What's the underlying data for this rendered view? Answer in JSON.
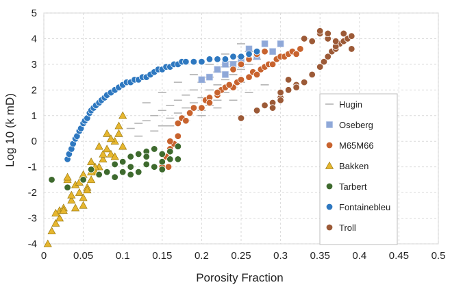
{
  "chart_data": {
    "type": "scatter",
    "title": "",
    "xlabel": "Porosity Fraction",
    "ylabel": "Log 10 (k mD)",
    "xlim": [
      0,
      0.5
    ],
    "ylim": [
      -4,
      5
    ],
    "xticks": [
      "0",
      "0.05",
      "0.1",
      "0.15",
      "0.2",
      "0.25",
      "0.3",
      "0.35",
      "0.4",
      "0.45",
      "0.5"
    ],
    "yticks": [
      "5",
      "4",
      "3",
      "2",
      "1",
      "0",
      "-1",
      "-2",
      "-3",
      "-4"
    ],
    "grid": true,
    "legend_position": "right",
    "series": [
      {
        "name": "Hugin",
        "marker": "dash",
        "color": "#b4b4b4",
        "x": [
          0.11,
          0.12,
          0.13,
          0.14,
          0.15,
          0.15,
          0.16,
          0.16,
          0.17,
          0.17,
          0.18,
          0.18,
          0.19,
          0.19,
          0.2,
          0.2,
          0.2,
          0.21,
          0.21,
          0.21,
          0.22,
          0.22,
          0.22,
          0.23,
          0.23,
          0.23,
          0.24,
          0.24,
          0.24,
          0.25,
          0.25,
          0.25,
          0.26,
          0.26,
          0.27,
          0.12,
          0.14,
          0.16,
          0.18,
          0.2,
          0.22,
          0.24,
          0.26,
          0.28,
          0.13,
          0.15,
          0.17,
          0.19,
          0.21,
          0.23,
          0.25
        ],
        "y": [
          0.5,
          0.7,
          0.8,
          1.0,
          1.2,
          0.6,
          1.4,
          0.9,
          1.6,
          1.1,
          1.8,
          1.3,
          2.0,
          1.5,
          2.3,
          1.7,
          1.2,
          2.5,
          2.0,
          1.4,
          2.7,
          2.2,
          1.6,
          2.9,
          2.4,
          1.9,
          3.1,
          2.6,
          2.1,
          3.3,
          2.8,
          2.3,
          3.5,
          3.0,
          3.2,
          0.2,
          0.4,
          0.6,
          0.8,
          1.0,
          1.3,
          1.6,
          1.9,
          2.2,
          1.5,
          1.9,
          2.3,
          2.6,
          3.0,
          3.4,
          3.8
        ]
      },
      {
        "name": "Oseberg",
        "marker": "square",
        "color": "#8fa8d8",
        "x": [
          0.2,
          0.21,
          0.22,
          0.23,
          0.24,
          0.25,
          0.26,
          0.27,
          0.28,
          0.29,
          0.3,
          0.25,
          0.23
        ],
        "y": [
          2.4,
          2.5,
          2.8,
          3.0,
          3.0,
          3.2,
          3.6,
          3.3,
          3.8,
          3.5,
          3.8,
          3.0,
          2.6
        ]
      },
      {
        "name": "M65M66",
        "marker": "circle",
        "color": "#c8632e",
        "x": [
          0.15,
          0.155,
          0.16,
          0.165,
          0.17,
          0.17,
          0.175,
          0.18,
          0.185,
          0.19,
          0.2,
          0.205,
          0.21,
          0.22,
          0.225,
          0.23,
          0.24,
          0.245,
          0.25,
          0.26,
          0.265,
          0.27,
          0.275,
          0.28,
          0.285,
          0.29,
          0.295,
          0.3,
          0.305,
          0.31,
          0.315,
          0.32,
          0.325,
          0.28,
          0.27,
          0.26,
          0.25,
          0.24,
          0.235,
          0.22,
          0.21,
          0.25,
          0.16,
          0.158
        ],
        "y": [
          -1.0,
          -0.6,
          -0.3,
          -0.1,
          0.2,
          0.7,
          0.9,
          0.8,
          1.1,
          1.3,
          1.3,
          1.6,
          1.7,
          1.8,
          2.0,
          2.1,
          2.1,
          2.3,
          2.4,
          2.5,
          2.7,
          2.6,
          2.8,
          2.9,
          3.0,
          3.0,
          3.2,
          3.3,
          3.3,
          3.4,
          3.5,
          3.4,
          3.6,
          3.5,
          3.4,
          3.2,
          3.0,
          2.8,
          2.2,
          1.9,
          1.5,
          0.9,
          0.0,
          -1.0
        ]
      },
      {
        "name": "Bakken",
        "marker": "triangle",
        "color": "#e6b62e",
        "x": [
          0.005,
          0.01,
          0.015,
          0.02,
          0.02,
          0.025,
          0.03,
          0.035,
          0.04,
          0.045,
          0.05,
          0.055,
          0.06,
          0.065,
          0.07,
          0.075,
          0.08,
          0.085,
          0.09,
          0.095,
          0.1,
          0.03,
          0.04,
          0.05,
          0.06,
          0.07,
          0.08,
          0.09,
          0.1,
          0.015,
          0.025,
          0.035,
          0.045,
          0.055,
          0.065,
          0.075,
          0.085,
          0.095,
          0.05,
          0.06
        ],
        "y": [
          -4.0,
          -3.5,
          -3.2,
          -2.7,
          -3.0,
          -2.6,
          -1.5,
          -2.3,
          -1.7,
          -2.0,
          -2.2,
          -1.8,
          -1.5,
          -1.2,
          -1.0,
          -0.7,
          -0.3,
          -0.5,
          0.0,
          0.6,
          1.0,
          -1.4,
          -2.6,
          -2.5,
          -1.2,
          -0.2,
          0.3,
          -0.6,
          -0.2,
          -2.8,
          -2.7,
          -2.1,
          -1.6,
          -1.9,
          -1.0,
          -0.5,
          0.1,
          0.3,
          -1.3,
          -0.8
        ]
      },
      {
        "name": "Tarbert",
        "marker": "circle",
        "color": "#3e6a2e",
        "x": [
          0.01,
          0.03,
          0.05,
          0.06,
          0.07,
          0.08,
          0.09,
          0.1,
          0.1,
          0.11,
          0.11,
          0.12,
          0.12,
          0.13,
          0.13,
          0.14,
          0.14,
          0.15,
          0.15,
          0.16,
          0.16,
          0.17,
          0.17,
          0.09,
          0.11,
          0.13,
          0.15
        ],
        "y": [
          -1.5,
          -1.8,
          -1.5,
          -1.1,
          -1.3,
          -1.2,
          -0.9,
          -0.8,
          -1.2,
          -0.6,
          -1.3,
          -0.5,
          -1.2,
          -0.4,
          -0.9,
          -0.3,
          -1.0,
          -0.5,
          -0.8,
          -0.4,
          -0.7,
          -0.2,
          -0.7,
          -1.4,
          -1.0,
          -0.6,
          -1.1
        ]
      },
      {
        "name": "Fontainebleu",
        "marker": "circle",
        "color": "#2e78c0",
        "x": [
          0.03,
          0.032,
          0.035,
          0.037,
          0.04,
          0.042,
          0.045,
          0.047,
          0.05,
          0.052,
          0.055,
          0.058,
          0.06,
          0.063,
          0.066,
          0.07,
          0.073,
          0.077,
          0.08,
          0.085,
          0.09,
          0.095,
          0.1,
          0.105,
          0.11,
          0.115,
          0.12,
          0.125,
          0.13,
          0.135,
          0.14,
          0.145,
          0.15,
          0.155,
          0.16,
          0.165,
          0.17,
          0.175,
          0.18,
          0.19,
          0.2,
          0.21,
          0.22,
          0.23,
          0.24,
          0.25,
          0.26,
          0.27
        ],
        "y": [
          -0.7,
          -0.5,
          -0.3,
          -0.1,
          0.1,
          0.2,
          0.4,
          0.5,
          0.7,
          0.8,
          0.9,
          1.1,
          1.2,
          1.3,
          1.4,
          1.5,
          1.6,
          1.7,
          1.8,
          1.9,
          2.0,
          2.1,
          2.2,
          2.3,
          2.3,
          2.4,
          2.4,
          2.5,
          2.5,
          2.6,
          2.7,
          2.8,
          2.8,
          2.9,
          2.9,
          3.0,
          3.0,
          3.1,
          3.1,
          3.1,
          3.1,
          3.2,
          3.2,
          3.2,
          3.3,
          3.3,
          3.4,
          3.5
        ]
      },
      {
        "name": "Troll",
        "marker": "circle",
        "color": "#9c5a37",
        "x": [
          0.25,
          0.27,
          0.28,
          0.29,
          0.3,
          0.31,
          0.32,
          0.33,
          0.34,
          0.35,
          0.355,
          0.36,
          0.365,
          0.37,
          0.375,
          0.38,
          0.385,
          0.39,
          0.35,
          0.36,
          0.37,
          0.38,
          0.39,
          0.34,
          0.35,
          0.36,
          0.37,
          0.29,
          0.3,
          0.31,
          0.32,
          0.3,
          0.33
        ],
        "y": [
          0.9,
          1.2,
          1.4,
          1.5,
          1.7,
          2.0,
          2.2,
          2.3,
          2.6,
          2.9,
          3.1,
          3.3,
          3.5,
          3.6,
          3.8,
          3.9,
          4.0,
          4.1,
          4.2,
          4.0,
          3.7,
          4.2,
          3.6,
          3.9,
          4.3,
          4.2,
          3.9,
          1.3,
          1.9,
          2.4,
          2.1,
          1.6,
          4.0
        ]
      }
    ]
  }
}
